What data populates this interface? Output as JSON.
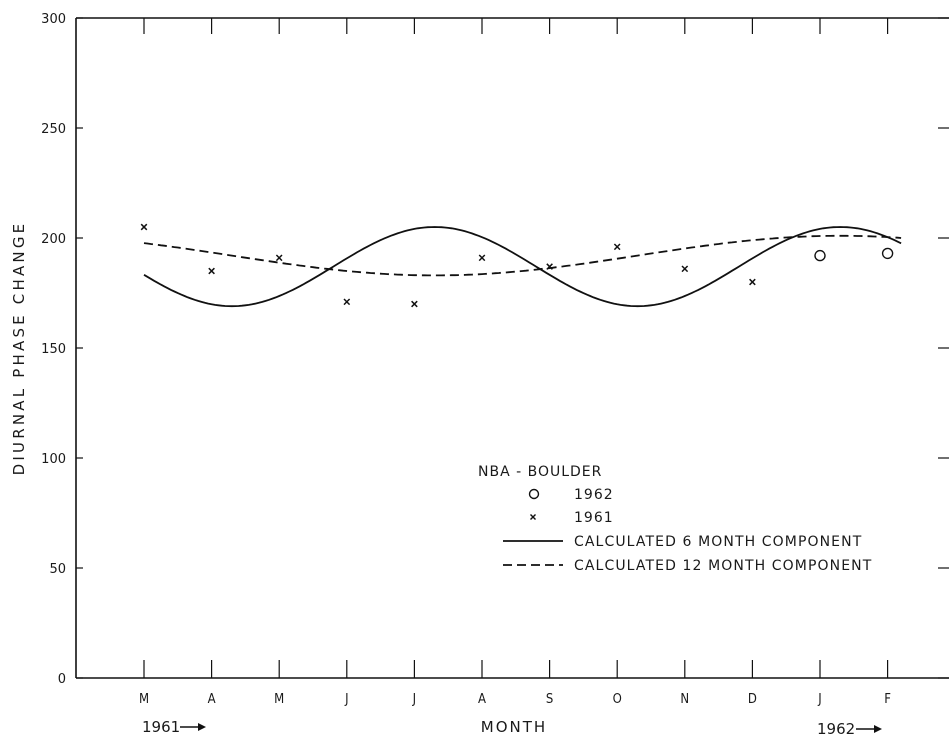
{
  "chart_data": {
    "type": "scatter",
    "xlabel": "MONTH",
    "ylabel": "DIURNAL PHASE CHANGE",
    "ylim": [
      0,
      300
    ],
    "y_ticks": [
      0,
      50,
      100,
      150,
      200,
      250,
      300
    ],
    "categories": [
      "M",
      "A",
      "M",
      "J",
      "J",
      "A",
      "S",
      "O",
      "N",
      "D",
      "J",
      "F"
    ],
    "year_labels": [
      {
        "text": "1961",
        "at_category": 0
      },
      {
        "text": "1962",
        "at_category": 10
      }
    ],
    "grid": false,
    "legend": {
      "title": "NBA - BOULDER",
      "placement": "lower-center"
    },
    "series": [
      {
        "name": "1962",
        "marker": "open-circle",
        "points": [
          [
            10,
            192
          ],
          [
            11,
            193
          ]
        ]
      },
      {
        "name": "1961",
        "marker": "x",
        "points": [
          [
            0,
            205
          ],
          [
            1,
            185
          ],
          [
            2,
            191
          ],
          [
            3,
            171
          ],
          [
            4,
            170
          ],
          [
            5,
            191
          ],
          [
            6,
            187
          ],
          [
            7,
            196
          ],
          [
            8,
            186
          ],
          [
            9,
            180
          ]
        ]
      },
      {
        "name": "CALCULATED 6 MONTH COMPONENT",
        "style": "solid",
        "mean": 187,
        "amplitude": 18,
        "period_months": 6,
        "peak_month": 4.3,
        "x_range": [
          0,
          11.2
        ]
      },
      {
        "name": "CALCULATED 12 MONTH COMPONENT",
        "style": "dashed",
        "mean": 192,
        "amplitude": 9,
        "period_months": 12,
        "peak_month": 10.3,
        "x_range": [
          0,
          11.2
        ]
      }
    ]
  }
}
